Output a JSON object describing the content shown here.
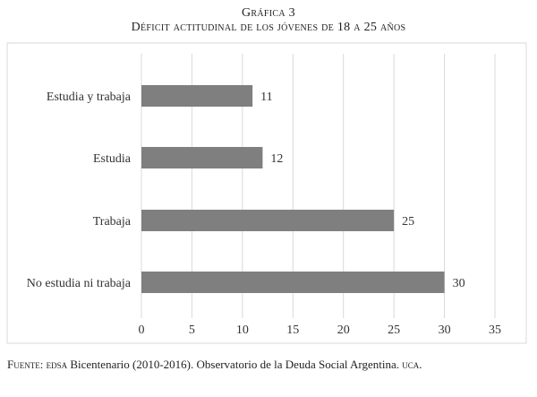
{
  "title": "Gráfica 3",
  "subtitle": "Déficit actitudinal de los jóvenes de 18 a 25 años",
  "source": {
    "label": "Fuente:",
    "org": "edsa",
    "rest": " Bicentenario (2010-2016). Observatorio de la Deuda Social Argentina.",
    "org2": "uca."
  },
  "chart_data": {
    "type": "bar",
    "orientation": "horizontal",
    "categories": [
      "Estudia y trabaja",
      "Estudia",
      "Trabaja",
      "No estudia ni trabaja"
    ],
    "values": [
      11,
      12,
      25,
      30
    ],
    "data_labels": [
      "11",
      "12",
      "25",
      "30"
    ],
    "xlim": [
      0,
      35
    ],
    "xticks": [
      0,
      5,
      10,
      15,
      20,
      25,
      30,
      35
    ],
    "grid": true,
    "legend": "none",
    "bar_color": "#7f7f7f",
    "grid_color": "#d9d9d9"
  }
}
